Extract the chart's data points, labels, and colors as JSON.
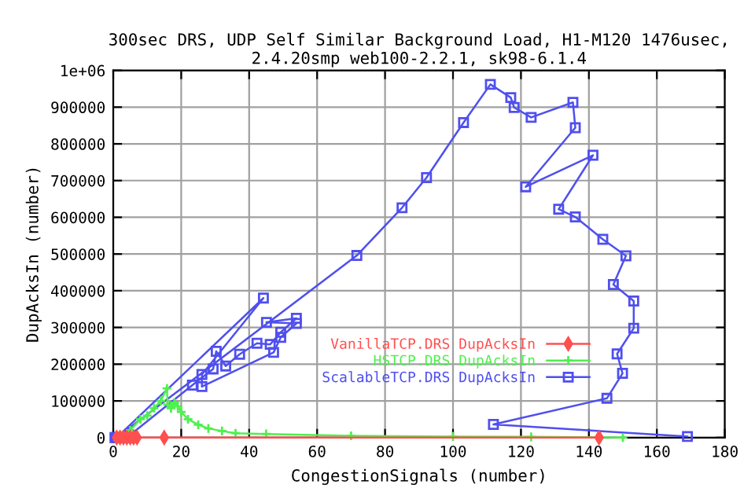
{
  "chart_data": {
    "type": "line",
    "title": "300sec DRS, UDP Self Similar Background Load, H1-M120 1476usec,\n2.4.20smp web100-2.2.1, sk98-6.1.4",
    "xlabel": "CongestionSignals (number)",
    "ylabel": "DupAcksIn (number)",
    "xlim": [
      0,
      180
    ],
    "ylim": [
      0,
      1000000
    ],
    "xticks": [
      0,
      20,
      40,
      60,
      80,
      100,
      120,
      140,
      160,
      180
    ],
    "yticks": [
      0,
      100000,
      200000,
      300000,
      400000,
      500000,
      600000,
      700000,
      800000,
      900000,
      {
        "value": 1000000,
        "label": "1e+06"
      }
    ],
    "grid": true,
    "legend": "bottom",
    "series": [
      {
        "name": "VanillaTCP.DRS DupAcksIn",
        "color": "#ff4f4f",
        "marker": "diamond",
        "x": [
          1,
          2,
          3,
          4,
          5,
          6,
          7,
          15,
          143
        ],
        "values": [
          0,
          0,
          0,
          0,
          0,
          0,
          0,
          0,
          0
        ]
      },
      {
        "name": "HSTCP.DRS DupAcksIn",
        "color": "#4fef4f",
        "marker": "cross",
        "x": [
          2,
          5,
          8,
          10,
          12,
          14,
          15.8,
          16,
          17,
          18,
          19,
          20,
          22,
          25,
          28,
          32,
          36,
          45,
          70,
          100,
          123,
          150
        ],
        "values": [
          0,
          20000,
          50000,
          60000,
          80000,
          100000,
          134000,
          90000,
          80000,
          95000,
          85000,
          70000,
          50000,
          35000,
          25000,
          18000,
          12000,
          10000,
          5000,
          3000,
          2000,
          0
        ]
      },
      {
        "name": "ScalableTCP.DRS DupAcksIn",
        "color": "#4f4fef",
        "marker": "square",
        "x": [
          0.5,
          2,
          4,
          23.3,
          29.4,
          30.3,
          33.1,
          37.2,
          42.3,
          46.2,
          49.3,
          53.9,
          45.1,
          53.9,
          49.3,
          47.2,
          26.1,
          26.1,
          44.2,
          1,
          71.7,
          85,
          92.2,
          103.1,
          111,
          117,
          118,
          123,
          135.3,
          136,
          121.4,
          141.2,
          131.1,
          136,
          144.1,
          150.9,
          147.2,
          153.2,
          153.2,
          148.3,
          149.9,
          145.3,
          111.9,
          169
        ],
        "values": [
          0,
          0,
          0,
          143000,
          187000,
          235000,
          195000,
          227000,
          257000,
          254000,
          287000,
          325000,
          314000,
          311000,
          273000,
          232000,
          139000,
          172000,
          380000,
          0,
          496000,
          626000,
          708000,
          858000,
          962000,
          926000,
          899000,
          872000,
          913000,
          844000,
          683000,
          769000,
          622000,
          601000,
          540000,
          495000,
          417000,
          372000,
          298000,
          228000,
          175000,
          107000,
          36000,
          3000
        ]
      }
    ]
  }
}
